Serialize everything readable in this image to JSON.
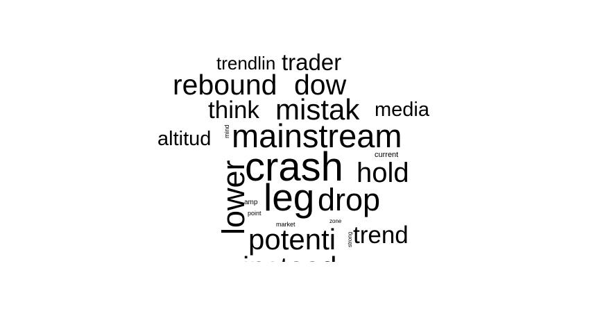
{
  "words": [
    {
      "text": "trendlin"
    },
    {
      "text": "trader"
    },
    {
      "text": "rebound"
    },
    {
      "text": "dow"
    },
    {
      "text": "think"
    },
    {
      "text": "mistak"
    },
    {
      "text": "media"
    },
    {
      "text": "altitud"
    },
    {
      "text": "mind"
    },
    {
      "text": "mainstream"
    },
    {
      "text": "lower"
    },
    {
      "text": "crash"
    },
    {
      "text": "current"
    },
    {
      "text": "hold"
    },
    {
      "text": "leg"
    },
    {
      "text": "drop"
    },
    {
      "text": "amp"
    },
    {
      "text": "point"
    },
    {
      "text": "market"
    },
    {
      "text": "zone"
    },
    {
      "text": "potenti"
    },
    {
      "text": "strong"
    },
    {
      "text": "trend"
    },
    {
      "text": "instead"
    }
  ]
}
